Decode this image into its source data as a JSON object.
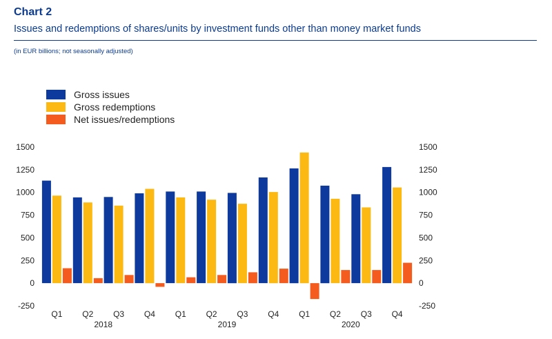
{
  "header": {
    "title": "Chart 2",
    "subtitle": "Issues and redemptions of shares/units by investment funds other than money market funds",
    "note": "(in EUR billions; not seasonally adjusted)"
  },
  "chart_data": {
    "type": "bar",
    "categories": [
      "Q1",
      "Q2",
      "Q3",
      "Q4",
      "Q1",
      "Q2",
      "Q3",
      "Q4",
      "Q1",
      "Q2",
      "Q3",
      "Q4"
    ],
    "years": [
      {
        "label": "2018",
        "start": 0,
        "end": 3
      },
      {
        "label": "2019",
        "start": 4,
        "end": 7
      },
      {
        "label": "2020",
        "start": 8,
        "end": 11
      }
    ],
    "series": [
      {
        "name": "Gross issues",
        "color": "#0d3a9c",
        "values": [
          1130,
          945,
          950,
          990,
          1010,
          1010,
          995,
          1165,
          1265,
          1075,
          980,
          1280
        ]
      },
      {
        "name": "Gross redemptions",
        "color": "#fdb913",
        "values": [
          965,
          890,
          855,
          1040,
          945,
          920,
          875,
          1005,
          1440,
          930,
          835,
          1055
        ]
      },
      {
        "name": "Net issues/redemptions",
        "color": "#f45b1f",
        "values": [
          165,
          55,
          90,
          -40,
          65,
          90,
          120,
          160,
          -175,
          145,
          145,
          225
        ]
      }
    ],
    "ylim": [
      -250,
      1500
    ],
    "yticks": [
      -250,
      0,
      250,
      500,
      750,
      1000,
      1250,
      1500
    ],
    "ytick_labels": [
      "-250",
      "0",
      "250",
      "500",
      "750",
      "1000",
      "1250",
      "1500"
    ],
    "legend_position": "top-left",
    "grid": false
  }
}
